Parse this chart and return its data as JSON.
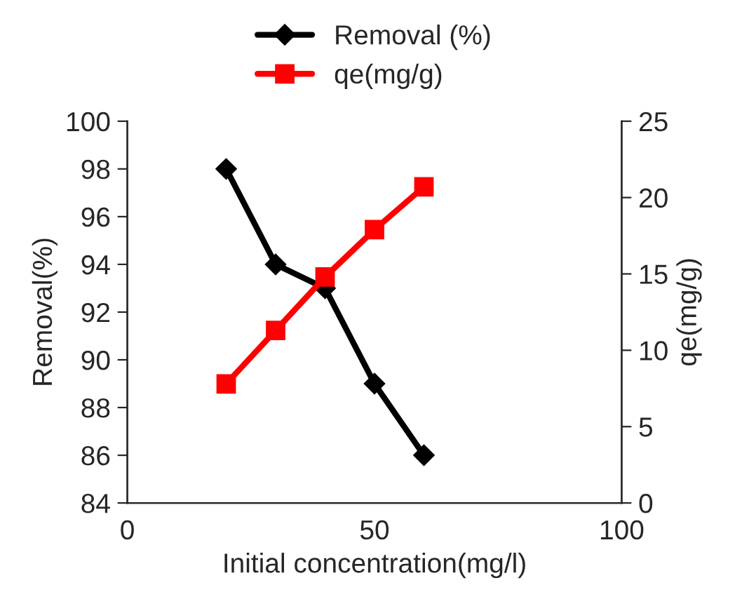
{
  "chart_data": {
    "type": "line",
    "xlabel": "Initial concentration(mg/l)",
    "ylabel": "Removal(%)",
    "y2label": "qe(mg/g)",
    "x": [
      20,
      30,
      40,
      50,
      60
    ],
    "series": [
      {
        "name": "Removal (%)",
        "color": "#000000",
        "marker": "diamond",
        "values": [
          98,
          94,
          93,
          89,
          86
        ]
      },
      {
        "name": "qe(mg/g)",
        "color": "#ff0000",
        "marker": "square",
        "axis": "y2",
        "values": [
          7.8,
          11.3,
          14.8,
          17.9,
          20.7
        ]
      }
    ],
    "xlim": [
      0,
      100
    ],
    "xticks": [
      0,
      50,
      100
    ],
    "ylim": [
      84,
      100
    ],
    "yticks": [
      84,
      86,
      88,
      90,
      92,
      94,
      96,
      98,
      100
    ],
    "y2lim": [
      0,
      25
    ],
    "y2ticks": [
      0,
      5,
      10,
      15,
      20,
      25
    ],
    "grid": false,
    "legend": "top",
    "line_style": "solid"
  }
}
